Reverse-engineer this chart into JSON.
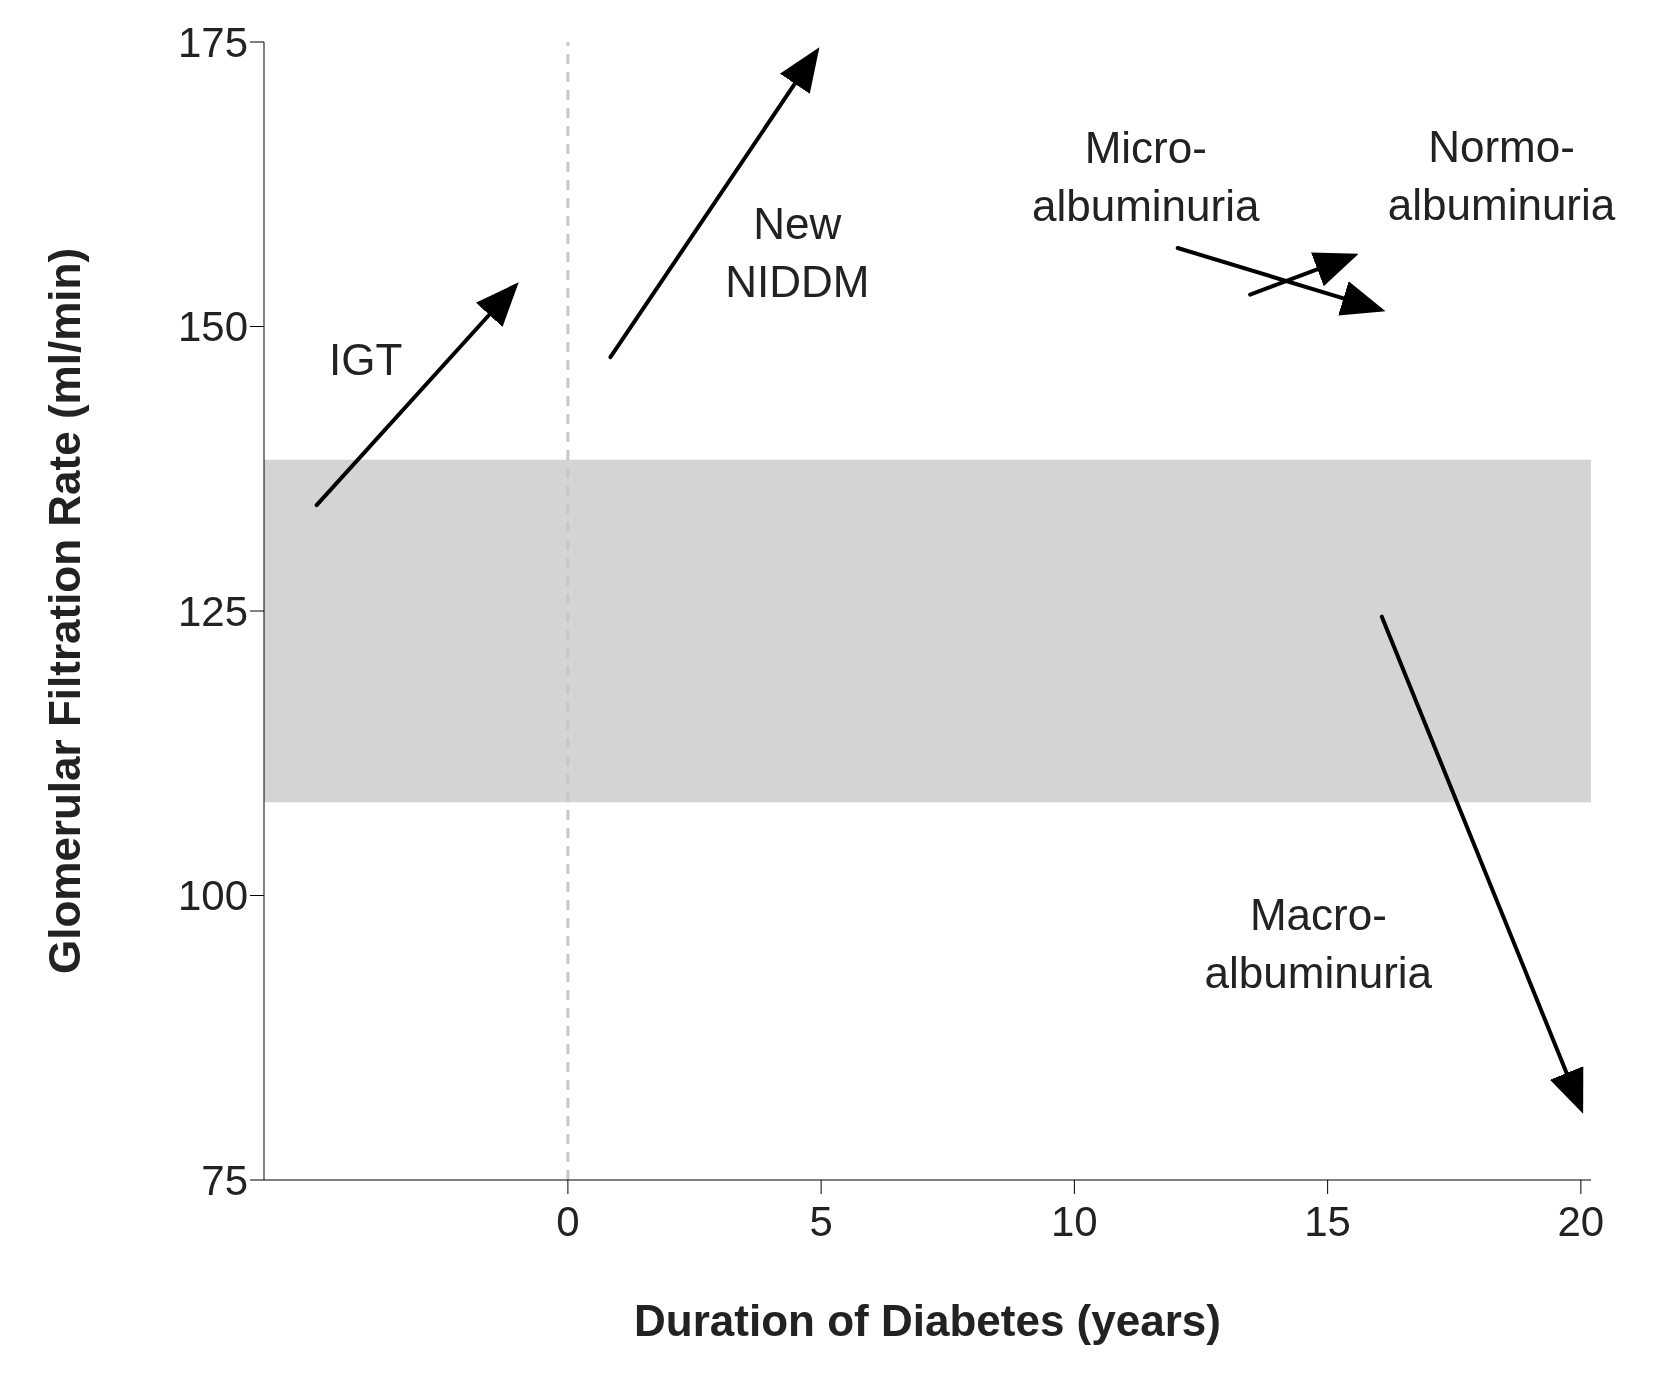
{
  "chart_data": {
    "type": "line",
    "xlabel": "Duration of Diabetes (years)",
    "ylabel": "Glomerular Filtration Rate (ml/min)",
    "xlim": [
      -6,
      20.2
    ],
    "xticks": [
      0,
      5,
      10,
      15,
      20
    ],
    "ylim": [
      75,
      175
    ],
    "yticks": [
      75,
      100,
      125,
      150,
      175
    ],
    "grid": false,
    "legend": false,
    "line_style": "solid",
    "series": [
      {
        "name": "IGT",
        "color": "#000000",
        "x": [
          -4.96,
          -1.05
        ],
        "values": [
          134.3,
          153.5
        ]
      },
      {
        "name": "New\nNIDDM",
        "color": "#000000",
        "x": [
          0.84,
          4.9
        ],
        "values": [
          147.3,
          174.1
        ]
      },
      {
        "name": "Micro-\nalbuminuria",
        "color": "#000000",
        "x": [
          12.04,
          16.03
        ],
        "values": [
          156.9,
          151.5
        ]
      },
      {
        "name": "Normo-\nalbuminuria",
        "color": "#000000",
        "x": [
          13.47,
          15.5
        ],
        "values": [
          152.8,
          156.2
        ]
      },
      {
        "name": "Macro-\nalbuminuria",
        "color": "#000000",
        "x": [
          16.07,
          20
        ],
        "values": [
          124.5,
          81.3
        ]
      }
    ],
    "ref_lines": [
      {
        "axis": "x",
        "value": 0,
        "color": "#c8c8c8",
        "line_style": "dashed"
      }
    ],
    "bands": [
      {
        "axis": "y",
        "from": 108.2,
        "to": 138.3,
        "color": "#d4d4d4"
      }
    ]
  }
}
